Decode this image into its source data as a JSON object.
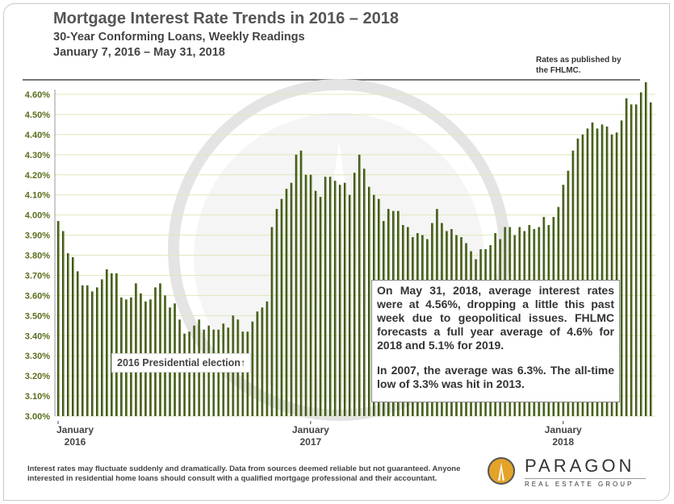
{
  "header": {
    "title": "Mortgage Interest Rate Trends in 2016 – 2018",
    "subtitle1": "30-Year Conforming Loans, Weekly Readings",
    "subtitle2": "January 7, 2016 – May 31, 2018",
    "source_note": "Rates as published by the FHLMC."
  },
  "annotations": {
    "election": "2016 Presidential election↑",
    "callout_p1": "On May 31, 2018, average interest rates were  at 4.56%, dropping a little this past week due to geopolitical issues. FHLMC forecasts a full year average of 4.6% for 2018 and 5.1% for 2019.",
    "callout_p2": "In 2007, the average was 6.3%. The all-time low of 3.3% was hit in 2013."
  },
  "footer": {
    "disclaimer": "Interest rates may fluctuate suddenly and dramatically. Data from sources deemed reliable but not guaranteed. Anyone interested in residential home loans should consult with a qualified mortgage professional and their accountant.",
    "logo_name": "PARAGON",
    "logo_tagline": "REAL ESTATE GROUP"
  },
  "colors": {
    "bar": "#5b7a24",
    "bar_edge": "#2c3a10",
    "grid": "#dfe8bf",
    "axis_label": "#5a6e1c",
    "logo_gold": "#e3a32a"
  },
  "chart_data": {
    "type": "bar",
    "title": "Mortgage Interest Rate Trends in 2016 – 2018",
    "xlabel": "",
    "ylabel": "",
    "ylim": [
      3.0,
      4.6
    ],
    "yticks": [
      "3.00%",
      "3.10%",
      "3.20%",
      "3.30%",
      "3.40%",
      "3.50%",
      "3.60%",
      "3.70%",
      "3.80%",
      "3.90%",
      "4.00%",
      "4.10%",
      "4.20%",
      "4.30%",
      "4.40%",
      "4.50%",
      "4.60%"
    ],
    "xtick_labels": [
      {
        "line1": "January",
        "line2": "2016",
        "index": 0
      },
      {
        "line1": "January",
        "line2": "2017",
        "index": 52
      },
      {
        "line1": "January",
        "line2": "2018",
        "index": 104
      }
    ],
    "grid": true,
    "legend": "none",
    "unit": "%",
    "values": [
      3.97,
      3.92,
      3.81,
      3.79,
      3.72,
      3.65,
      3.65,
      3.62,
      3.64,
      3.68,
      3.73,
      3.71,
      3.71,
      3.59,
      3.58,
      3.59,
      3.66,
      3.61,
      3.57,
      3.58,
      3.64,
      3.66,
      3.6,
      3.54,
      3.56,
      3.48,
      3.41,
      3.42,
      3.45,
      3.48,
      3.43,
      3.45,
      3.43,
      3.43,
      3.46,
      3.44,
      3.5,
      3.48,
      3.42,
      3.42,
      3.47,
      3.52,
      3.54,
      3.57,
      3.94,
      4.03,
      4.08,
      4.13,
      4.16,
      4.3,
      4.32,
      4.2,
      4.2,
      4.12,
      4.09,
      4.19,
      4.19,
      4.17,
      4.15,
      4.16,
      4.1,
      4.21,
      4.3,
      4.23,
      4.14,
      4.1,
      4.08,
      3.97,
      4.03,
      4.02,
      4.02,
      3.95,
      3.94,
      3.89,
      3.91,
      3.9,
      3.88,
      3.96,
      4.03,
      3.96,
      3.92,
      3.93,
      3.9,
      3.89,
      3.86,
      3.82,
      3.78,
      3.83,
      3.83,
      3.85,
      3.91,
      3.88,
      3.94,
      3.94,
      3.9,
      3.94,
      3.92,
      3.95,
      3.93,
      3.94,
      3.99,
      3.95,
      3.99,
      4.04,
      4.15,
      4.22,
      4.32,
      4.38,
      4.4,
      4.43,
      4.46,
      4.43,
      4.45,
      4.44,
      4.4,
      4.41,
      4.47,
      4.58,
      4.55,
      4.55,
      4.61,
      4.66,
      4.56
    ]
  }
}
